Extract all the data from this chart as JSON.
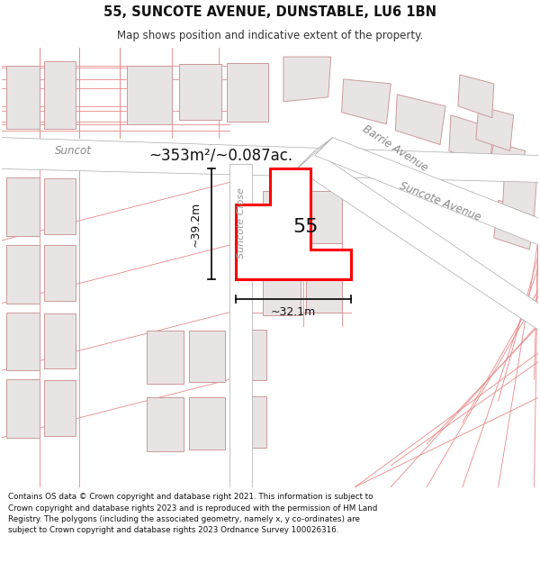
{
  "title_line1": "55, SUNCOTE AVENUE, DUNSTABLE, LU6 1BN",
  "title_line2": "Map shows position and indicative extent of the property.",
  "area_label": "~353m²/~0.087ac.",
  "number_label": "55",
  "width_label": "~32.1m",
  "height_label": "~39.2m",
  "street_suncote": "Suncote",
  "street_close": "Suncote Close",
  "street_barrie": "Barrie Avenue",
  "street_avenue": "Suncote Avenue",
  "footer": "Contains OS data © Crown copyright and database right 2021. This information is subject to Crown copyright and database rights 2023 and is reproduced with the permission of HM Land Registry. The polygons (including the associated geometry, namely x, y co-ordinates) are subject to Crown copyright and database rights 2023 Ordnance Survey 100026316.",
  "map_bg": "#f7f4f4",
  "road_fill": "#ffffff",
  "road_edge": "#aaaaaa",
  "bld_fill": "#e8e4e4",
  "bld_edge": "#cc9999",
  "prop_fill": "#ffffff",
  "prop_edge": "#ff0000",
  "figsize": [
    6.0,
    6.25
  ],
  "dpi": 100
}
